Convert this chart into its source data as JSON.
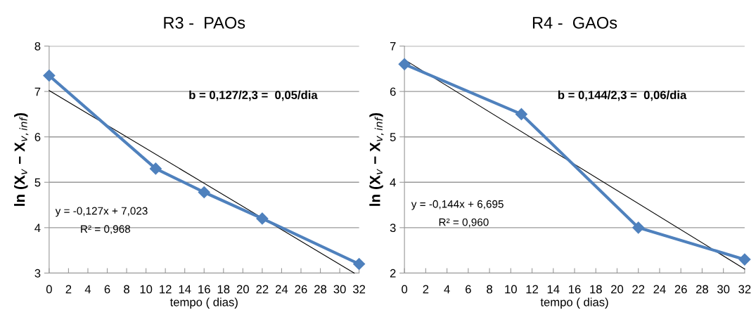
{
  "chart_data": [
    {
      "type": "line",
      "title": "R3 -  PAOs",
      "xlabel": "tempo ( dias)",
      "ylabel": "ln (X$_{v}$ − X$_{v,inf}$)",
      "series": [
        {
          "x": [
            0,
            11,
            16,
            22,
            32
          ],
          "values": [
            7.35,
            5.3,
            4.78,
            4.2,
            3.2
          ],
          "color": "#4f81bd",
          "marker": "diamond"
        },
        {
          "type": "line",
          "x": [
            0,
            31.5
          ],
          "values": [
            7.02,
            3.0
          ],
          "color": "#000000",
          "marker": "none"
        }
      ],
      "xlim": [
        0,
        32
      ],
      "xticks": [
        0,
        2,
        4,
        6,
        8,
        10,
        12,
        14,
        16,
        18,
        20,
        22,
        24,
        26,
        28,
        30,
        32
      ],
      "ylim": [
        3,
        8
      ],
      "yticks": [
        3,
        4,
        5,
        6,
        7,
        8
      ],
      "grid": "y",
      "legend": false,
      "annotations": [
        "b = 0,127/2,3 =  0,05/dia",
        "y = -0,127x + 7,023",
        "R² = 0,968"
      ]
    },
    {
      "type": "line",
      "title": "R4 -  GAOs",
      "xlabel": "tempo ( dias)",
      "ylabel": "ln (X$_{v}$ − X$_{v,inf}$)",
      "series": [
        {
          "x": [
            0,
            11,
            22,
            32
          ],
          "values": [
            6.6,
            5.5,
            3.0,
            2.3
          ],
          "color": "#4f81bd",
          "marker": "diamond"
        },
        {
          "type": "line",
          "x": [
            0,
            32
          ],
          "values": [
            6.7,
            2.09
          ],
          "color": "#000000",
          "marker": "none"
        }
      ],
      "xlim": [
        0,
        32
      ],
      "xticks": [
        0,
        2,
        4,
        6,
        8,
        10,
        12,
        14,
        16,
        18,
        20,
        22,
        24,
        26,
        28,
        30,
        32
      ],
      "ylim": [
        2,
        7
      ],
      "yticks": [
        2,
        3,
        4,
        5,
        6,
        7
      ],
      "grid": "y",
      "legend": false,
      "annotations": [
        "b = 0,144/2,3 =  0,06/dia",
        "y = -0,144x + 6,695",
        "R² = 0,960"
      ]
    }
  ]
}
